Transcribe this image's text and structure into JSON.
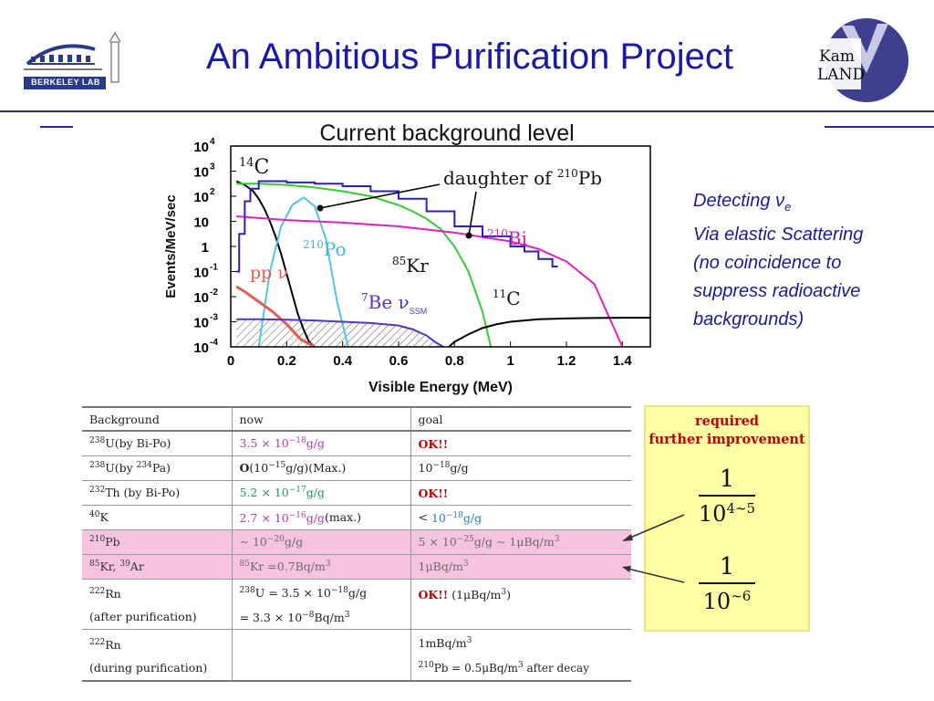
{
  "header": {
    "title": "An Ambitious Purification Project",
    "left_logo_text": "BERKELEY LAB",
    "right_logo_text_1": "Kam",
    "right_logo_text_2": "LAND"
  },
  "side_note": {
    "line1_prefix": "Detecting ",
    "nu_symbol": "ν",
    "nu_subscript": "e",
    "line2": "Via elastic Scattering",
    "line3": "(no coincidence to",
    "line4": "suppress radioactive",
    "line5": "backgrounds)"
  },
  "chart_data": {
    "type": "line",
    "title": "Current background level",
    "xlabel": "Visible Energy (MeV)",
    "ylabel": "Events/MeV/sec",
    "x_ticks": [
      "0",
      "0.2",
      "0.4",
      "0.6",
      "0.8",
      "1",
      "1.2",
      "1.4"
    ],
    "xlim": [
      0,
      1.5
    ],
    "ylim_log10": [
      -4,
      4
    ],
    "y_tick_base": "10",
    "y_ticks": [
      {
        "exp10": 4,
        "base": "10",
        "sup": "4"
      },
      {
        "exp10": 3,
        "base": "10",
        "sup": "3"
      },
      {
        "exp10": 2,
        "base": "10",
        "sup": "2"
      },
      {
        "exp10": 1,
        "base": "10",
        "sup": ""
      },
      {
        "exp10": 0,
        "base": "1",
        "sup": ""
      },
      {
        "exp10": -1,
        "base": "10",
        "sup": "-1"
      },
      {
        "exp10": -2,
        "base": "10",
        "sup": "-2"
      },
      {
        "exp10": -3,
        "base": "10",
        "sup": "-3"
      },
      {
        "exp10": -4,
        "base": "10",
        "sup": "-4"
      }
    ],
    "annotations": {
      "c14": {
        "sup": "14",
        "text": "C"
      },
      "po210": {
        "sup": "210",
        "text": "Po"
      },
      "kr85": {
        "sup": "85",
        "text": "Kr"
      },
      "bi210": {
        "sup": "210",
        "text": "Bi"
      },
      "c11": {
        "sup": "11",
        "text": "C"
      },
      "pp": {
        "text": "pp ν"
      },
      "be7": {
        "sup": "7",
        "text": "Be ν",
        "sub": "SSM"
      },
      "daughter_prefix": "daughter of ",
      "daughter_sup": "210",
      "daughter_el": "Pb"
    },
    "series": [
      {
        "name": "14C",
        "color": "#000000",
        "x": [
          0.02,
          0.05,
          0.08,
          0.1,
          0.12,
          0.14,
          0.16,
          0.18,
          0.2,
          0.22,
          0.24,
          0.26,
          0.28,
          0.3
        ],
        "log10y": [
          2.6,
          2.45,
          2.2,
          1.9,
          1.5,
          1.0,
          0.4,
          -0.3,
          -1.1,
          -1.9,
          -2.7,
          -3.3,
          -3.8,
          -4.0
        ]
      },
      {
        "name": "210Po",
        "color": "#4fc7e3",
        "x": [
          0.1,
          0.14,
          0.18,
          0.22,
          0.26,
          0.3,
          0.34,
          0.38,
          0.42
        ],
        "log10y": [
          -4,
          -1.0,
          0.8,
          1.65,
          1.95,
          1.6,
          0.3,
          -2.2,
          -4
        ]
      },
      {
        "name": "85Kr",
        "color": "#33cc33",
        "x": [
          0.02,
          0.1,
          0.2,
          0.3,
          0.4,
          0.5,
          0.6,
          0.65,
          0.7,
          0.75,
          0.8,
          0.85,
          0.9,
          0.93
        ],
        "log10y": [
          2.5,
          2.5,
          2.45,
          2.35,
          2.2,
          2.0,
          1.65,
          1.4,
          1.1,
          0.7,
          0.0,
          -1.0,
          -2.6,
          -4.0
        ]
      },
      {
        "name": "210Bi",
        "color": "#e020c0",
        "x": [
          0.02,
          0.2,
          0.4,
          0.6,
          0.8,
          1.0,
          1.1,
          1.2,
          1.3,
          1.4
        ],
        "log10y": [
          1.2,
          1.05,
          0.95,
          0.8,
          0.55,
          0.2,
          -0.1,
          -0.6,
          -1.5,
          -4.0
        ]
      },
      {
        "name": "11C",
        "color": "#000000",
        "x": [
          0.78,
          0.8,
          0.85,
          0.9,
          0.95,
          1.0,
          1.05,
          1.1,
          1.2,
          1.3,
          1.4,
          1.5
        ],
        "log10y": [
          -4.0,
          -3.8,
          -3.5,
          -3.25,
          -3.1,
          -3.0,
          -2.95,
          -2.9,
          -2.87,
          -2.85,
          -2.84,
          -2.84
        ]
      },
      {
        "name": "pp",
        "color": "#e06050",
        "x": [
          0.02,
          0.05,
          0.1,
          0.15,
          0.2,
          0.25,
          0.3
        ],
        "log10y": [
          -1.6,
          -1.8,
          -2.2,
          -2.6,
          -3.1,
          -3.7,
          -4.0
        ]
      },
      {
        "name": "7Be",
        "color": "#5533cc",
        "x": [
          0.02,
          0.1,
          0.2,
          0.3,
          0.4,
          0.5,
          0.6,
          0.65,
          0.7,
          0.73,
          0.76
        ],
        "log10y": [
          -2.9,
          -2.9,
          -2.92,
          -2.95,
          -3.0,
          -3.05,
          -3.15,
          -3.3,
          -3.55,
          -3.8,
          -4.0
        ]
      },
      {
        "name": "data",
        "color": "#2a1fc0",
        "x": [
          0.02,
          0.03,
          0.05,
          0.07,
          0.1,
          0.15,
          0.2,
          0.3,
          0.4,
          0.5,
          0.6,
          0.7,
          0.8,
          0.9,
          1.0,
          1.05,
          1.1,
          1.15
        ],
        "log10y": [
          -1.0,
          0.5,
          1.8,
          2.3,
          2.6,
          2.6,
          2.55,
          2.5,
          2.4,
          2.2,
          1.9,
          1.4,
          0.8,
          0.4,
          0.0,
          -0.2,
          -0.5,
          -0.8
        ]
      }
    ]
  },
  "table": {
    "headers": [
      "Background",
      "now",
      "goal"
    ],
    "rows": [
      {
        "c1_sup": "238",
        "c1": "U(by Bi-Po)",
        "c2": "3.5 × 10",
        "c2_sup": "−18",
        "c2_tail": "g/g",
        "c3": "OK!!"
      },
      {
        "c1_sup": "238",
        "c1": "U(by ",
        "c1_sup2": "234",
        "c1_tail": "Pa)",
        "c2_bold": "O",
        "c2": "(10",
        "c2_sup": "−15",
        "c2_tail": "g/g)(Max.)",
        "c3": "10",
        "c3_sup": "−18",
        "c3_tail": "g/g"
      },
      {
        "c1_sup": "232",
        "c1": "Th (by Bi-Po)",
        "c2": "5.2 × 10",
        "c2_sup": "−17",
        "c2_tail": "g/g",
        "c3": "OK!!"
      },
      {
        "c1_sup": "40",
        "c1": "K",
        "c2": "2.7 × 10",
        "c2_sup": "−16",
        "c2_tail": "g/g",
        "c2_extra": "(max.)",
        "c3": "< ",
        "c3_blue": "10",
        "c3_sup": "−18",
        "c3_tail": "g/g"
      },
      {
        "c1_sup": "210",
        "c1": "Pb",
        "c2": "∼ 10",
        "c2_sup": "−20",
        "c2_tail": "g/g",
        "c3": "5 × 10",
        "c3_sup": "−25",
        "c3_tail": "g/g ∼ 1μBq/m",
        "c3_sup2": "3"
      },
      {
        "c1_sup": "85",
        "c1": "Kr, ",
        "c1_sup2": "39",
        "c1_tail": "Ar",
        "c2_sup0": "85",
        "c2": "Kr =0.7Bq/m",
        "c2_sup": "3",
        "c3": "1μBq/m",
        "c3_sup": "3"
      },
      {
        "c1_sup": "222",
        "c1": "Rn",
        "c1_line2": "(after purification)",
        "c2_sup0": "238",
        "c2": "U = 3.5 × 10",
        "c2_sup": "−18",
        "c2_tail": "g/g",
        "c2_line2": "= 3.3 × 10",
        "c2_line2_sup": "−8",
        "c2_line2_tail": "Bq/m",
        "c2_line2_sup2": "3",
        "c3": "OK!!",
        "c3_tail": " (1μBq/m",
        "c3_sup": "3",
        "c3_tail2": ")"
      },
      {
        "c1_sup": "222",
        "c1": "Rn",
        "c1_line2": "(during purification)",
        "c3": "1mBq/m",
        "c3_sup": "3",
        "c3_line2_sup": "210",
        "c3_line2": "Pb = 0.5μBq/m",
        "c3_line2_sup2": "3",
        "c3_line2_tail": " after decay"
      }
    ]
  },
  "improvement_box": {
    "title_line1": "required",
    "title_line2": "further improvement",
    "frac1_num": "1",
    "frac1_den": "10",
    "frac1_den_sup": "4∼5",
    "frac2_num": "1",
    "frac2_den": "10",
    "frac2_den_sup": "∼6"
  }
}
